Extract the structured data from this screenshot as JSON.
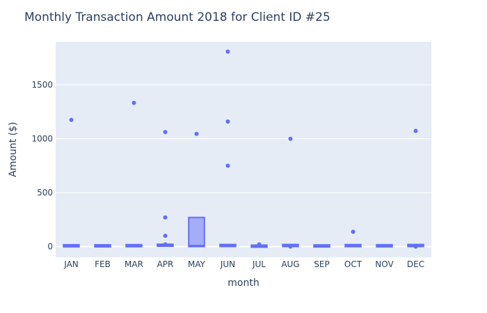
{
  "chart_data": {
    "type": "box",
    "title": "Monthly Transaction Amount 2018 for Client ID #25",
    "xlabel": "month",
    "ylabel": "Amount ($)",
    "categories": [
      "JAN",
      "FEB",
      "MAR",
      "APR",
      "MAY",
      "JUN",
      "JUL",
      "AUG",
      "SEP",
      "OCT",
      "NOV",
      "DEC"
    ],
    "yticks": [
      0,
      500,
      1000,
      1500
    ],
    "ylim": [
      -100,
      1900
    ],
    "grid": true,
    "colors": {
      "box": "#636efa",
      "fill": "rgba(99,110,250,0.5)",
      "plot_bg": "#e5ecf6",
      "grid": "#ffffff"
    },
    "boxes": [
      {
        "month": "JAN",
        "q1": 0,
        "median": 8,
        "q3": 15,
        "outliers": [
          1175
        ]
      },
      {
        "month": "FEB",
        "q1": 0,
        "median": 8,
        "q3": 14,
        "outliers": []
      },
      {
        "month": "MAR",
        "q1": 0,
        "median": 10,
        "q3": 17,
        "outliers": [
          1333
        ]
      },
      {
        "month": "APR",
        "q1": 5,
        "median": 12,
        "q3": 20,
        "outliers": [
          1062,
          270,
          100,
          20
        ]
      },
      {
        "month": "MAY",
        "q1": 0,
        "median": 10,
        "q3": 270,
        "outliers": [
          1045
        ]
      },
      {
        "month": "JUN",
        "q1": 2,
        "median": 10,
        "q3": 18,
        "outliers": [
          1808,
          1160,
          750
        ]
      },
      {
        "month": "JUL",
        "q1": 0,
        "median": 4,
        "q3": 8,
        "outliers": [
          20
        ]
      },
      {
        "month": "AUG",
        "q1": 5,
        "median": 10,
        "q3": 15,
        "outliers": [
          1000,
          0
        ]
      },
      {
        "month": "SEP",
        "q1": 0,
        "median": 6,
        "q3": 12,
        "outliers": []
      },
      {
        "month": "OCT",
        "q1": 0,
        "median": 10,
        "q3": 18,
        "outliers": [
          137
        ]
      },
      {
        "month": "NOV",
        "q1": 0,
        "median": 8,
        "q3": 15,
        "outliers": []
      },
      {
        "month": "DEC",
        "q1": 5,
        "median": 10,
        "q3": 15,
        "outliers": [
          1073,
          0
        ]
      }
    ]
  }
}
